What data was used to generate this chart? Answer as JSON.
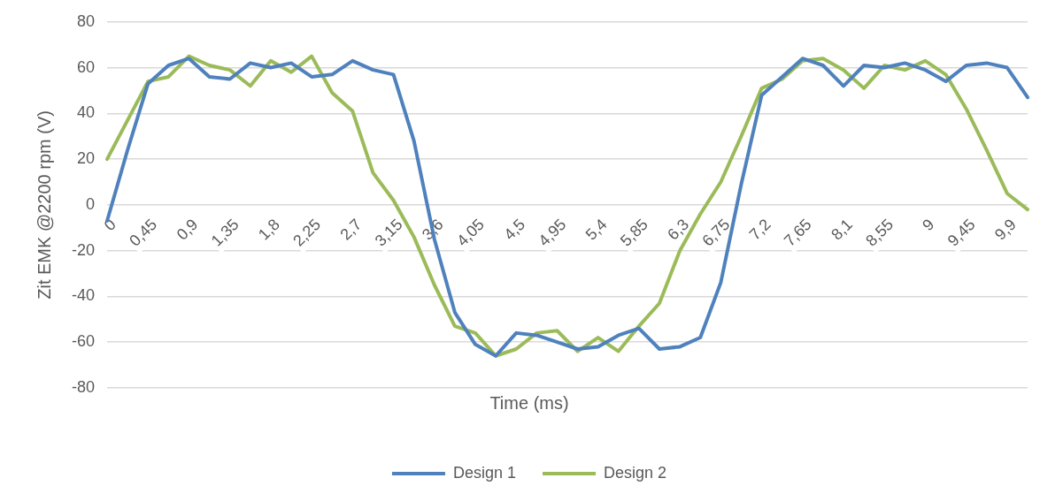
{
  "chart_data": {
    "type": "line",
    "xlabel": "Time (ms)",
    "ylabel": "Zit EMK @2200 rpm (V)",
    "categories": [
      "0",
      null,
      "0,45",
      null,
      "0,9",
      null,
      "1,35",
      null,
      "1,8",
      null,
      "2,25",
      null,
      "2,7",
      null,
      "3,15",
      null,
      "3,6",
      null,
      "4,05",
      null,
      "4,5",
      null,
      "4,95",
      null,
      "5,4",
      null,
      "5,85",
      null,
      "6,3",
      null,
      "6,75",
      null,
      "7,2",
      null,
      "7,65",
      null,
      "8,1",
      null,
      "8,55",
      null,
      "9",
      null,
      "9,45",
      null,
      "9,9",
      null
    ],
    "series": [
      {
        "name": "Design 1",
        "color": "#4f81bd",
        "values": [
          -7,
          24,
          53,
          61,
          64,
          56,
          55,
          62,
          60,
          62,
          56,
          57,
          63,
          59,
          57,
          28,
          -15,
          -47,
          -61,
          -66,
          -56,
          -57,
          -60,
          -63,
          -62,
          -57,
          -54,
          -63,
          -62,
          -58,
          -34,
          9,
          48,
          56,
          64,
          61,
          52,
          61,
          60,
          62,
          59,
          54,
          61,
          62,
          60,
          47
        ]
      },
      {
        "name": "Design 2",
        "color": "#9bbb59",
        "values": [
          20,
          37,
          54,
          56,
          65,
          61,
          59,
          52,
          63,
          58,
          65,
          49,
          41,
          14,
          2,
          -14,
          -35,
          -53,
          -56,
          -66,
          -63,
          -56,
          -55,
          -64,
          -58,
          -64,
          -53,
          -43,
          -20,
          -4,
          10,
          30,
          51,
          55,
          63,
          64,
          59,
          51,
          61,
          59,
          63,
          57,
          42,
          24,
          5,
          -2
        ]
      }
    ],
    "ylim": [
      -80,
      80
    ],
    "yticks": [
      -80,
      -60,
      -40,
      -20,
      0,
      20,
      40,
      60,
      80
    ],
    "grid": "y",
    "legend": "bottom",
    "marker": "none",
    "line_style": "solid"
  }
}
